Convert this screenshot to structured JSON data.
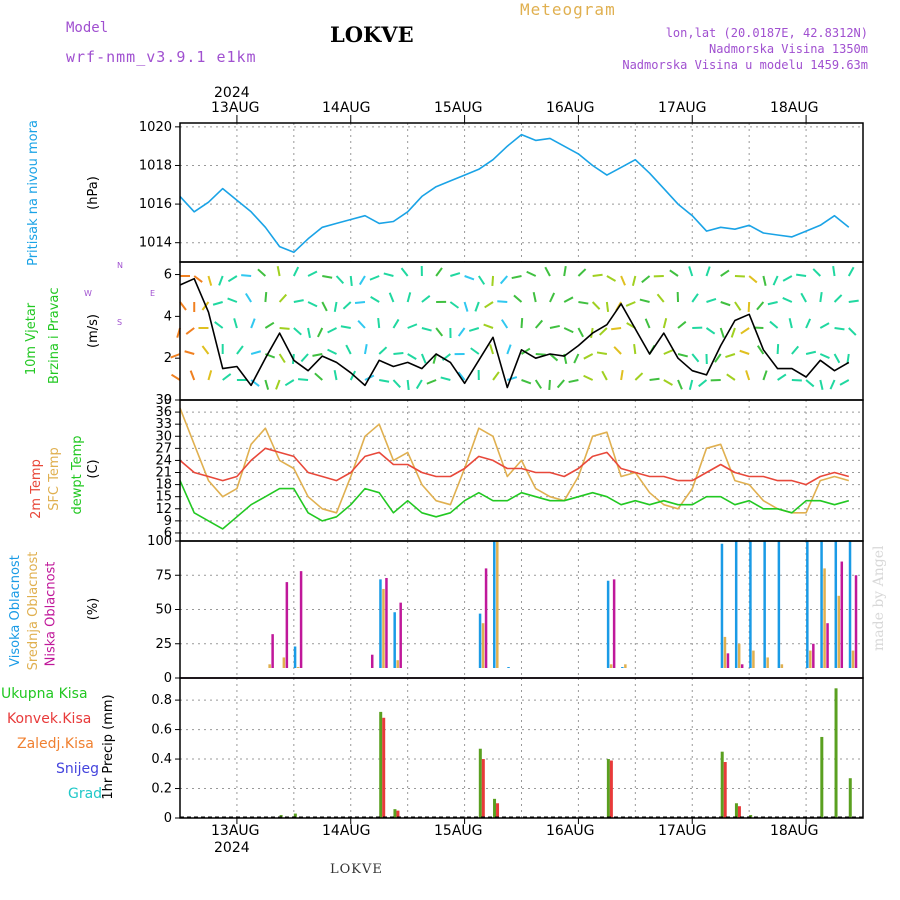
{
  "header": {
    "model_label": "Model",
    "model_name": "wrf-nmm_v3.9.1 e1km",
    "station": "LOKVE",
    "meteogram": "Meteogram",
    "coords": "lon,lat (20.0187E, 42.8312N)",
    "elev": "Nadmorska Visina 1350m",
    "elev_model": "Nadmorska Visina u modelu 1459.63m",
    "year": "2024",
    "footer_station": "LOKVE",
    "watermark": "made by Angel"
  },
  "colors": {
    "pressure": "#1aa3e6",
    "wind_speed": "#000000",
    "temp2m": "#e8483a",
    "sfc_temp": "#e0b050",
    "dewpt": "#22c822",
    "cloud_high": "#1a9be6",
    "cloud_mid": "#e0b050",
    "cloud_low": "#c0189a",
    "precip_total": "#5aa020",
    "precip_conv": "#e83a3a",
    "frozen": "#f08030",
    "snow": "#4444dd",
    "hail": "#20c8c8"
  },
  "x_axis": {
    "days": [
      "13AUG",
      "14AUG",
      "15AUG",
      "16AUG",
      "17AUG",
      "18AUG"
    ]
  },
  "panels": {
    "pressure": {
      "label_a": "Pritisak na nivou mora",
      "unit": "(hPa)",
      "yticks": [
        "1014",
        "1016",
        "1018",
        "1020"
      ]
    },
    "wind": {
      "label_a": "10m Vjetar",
      "label_b": "Brzina i Pravac",
      "unit": "(m/s)",
      "yticks": [
        "0",
        "2",
        "4",
        "6"
      ],
      "compass_n": "N",
      "compass_s": "S",
      "compass_w": "W",
      "compass_e": "E"
    },
    "temp": {
      "label_a": "2m Temp",
      "label_b": "SFC Temp",
      "label_c": "dewpt Temp",
      "unit": "(C)",
      "yticks": [
        "6",
        "9",
        "12",
        "15",
        "18",
        "21",
        "24",
        "27",
        "30",
        "33",
        "36",
        "39"
      ]
    },
    "cloud": {
      "label_a": "Visoka Oblacnost",
      "label_b": "Srednja Oblacnost",
      "label_c": "Niska Oblacnost",
      "unit": "(%)",
      "yticks": [
        "0",
        "25",
        "50",
        "75",
        "100"
      ]
    },
    "precip": {
      "leg_total": "Ukupna Kisa",
      "leg_conv": "Konvek.Kisa",
      "leg_frozen": "Zaledj.Kisa",
      "leg_snow": "Snijeg",
      "leg_hail": "Grad",
      "unit": "1hr Precip (mm)",
      "yticks": [
        "0",
        "0.2",
        "0.4",
        "0.6",
        "0.8"
      ]
    }
  },
  "chart_data": [
    {
      "type": "line",
      "ylabel": "Pritisak na nivou mora (hPa)",
      "ylim": [
        1013,
        1020.2
      ],
      "x_hours": [
        0,
        3,
        6,
        9,
        12,
        15,
        18,
        21,
        24,
        27,
        30,
        33,
        36,
        39,
        42,
        45,
        48,
        51,
        54,
        57,
        60,
        63,
        66,
        69,
        72,
        75,
        78,
        81,
        84,
        87,
        90,
        93,
        96,
        99,
        102,
        105,
        108,
        111,
        114,
        117,
        120,
        123,
        126,
        129,
        132,
        135,
        138,
        141
      ],
      "series": [
        {
          "values": [
            1016.4,
            1015.6,
            1016.1,
            1016.8,
            1016.2,
            1015.6,
            1014.8,
            1013.8,
            1013.5,
            1014.2,
            1014.8,
            1015.0,
            1015.2,
            1015.4,
            1015.0,
            1015.1,
            1015.6,
            1016.4,
            1016.9,
            1017.2,
            1017.5,
            1017.8,
            1018.3,
            1019.0,
            1019.6,
            1019.3,
            1019.4,
            1019.0,
            1018.6,
            1018.0,
            1017.5,
            1017.9,
            1018.3,
            1017.6,
            1016.8,
            1016.0,
            1015.4,
            1014.6,
            1014.8,
            1014.7,
            1014.9,
            1014.5,
            1014.4,
            1014.3,
            1014.6,
            1014.9,
            1015.4,
            1014.8
          ]
        }
      ]
    },
    {
      "type": "line",
      "ylabel": "10m Vjetar Brzina i Pravac (m/s)",
      "ylim": [
        0,
        6.6
      ],
      "x_hours": [
        0,
        3,
        6,
        9,
        12,
        15,
        18,
        21,
        24,
        27,
        30,
        33,
        36,
        39,
        42,
        45,
        48,
        51,
        54,
        57,
        60,
        63,
        66,
        69,
        72,
        75,
        78,
        81,
        84,
        87,
        90,
        93,
        96,
        99,
        102,
        105,
        108,
        111,
        114,
        117,
        120,
        123,
        126,
        129,
        132,
        135,
        138,
        141
      ],
      "series": [
        {
          "values": [
            5.5,
            5.8,
            4.2,
            1.5,
            1.6,
            0.7,
            2.0,
            3.2,
            1.9,
            1.4,
            2.1,
            1.8,
            1.3,
            0.7,
            1.9,
            1.6,
            1.8,
            1.5,
            2.2,
            1.8,
            0.8,
            1.9,
            3.0,
            0.6,
            2.4,
            2.0,
            2.2,
            2.1,
            2.6,
            3.2,
            3.6,
            4.6,
            3.4,
            2.2,
            3.2,
            2.0,
            1.4,
            1.2,
            2.6,
            3.8,
            4.1,
            2.4,
            1.5,
            1.5,
            1.1,
            1.9,
            1.4,
            1.8
          ]
        }
      ]
    },
    {
      "type": "line",
      "ylabel": "(C)",
      "ylim": [
        4,
        39
      ],
      "x_hours": [
        0,
        3,
        6,
        9,
        12,
        15,
        18,
        21,
        24,
        27,
        30,
        33,
        36,
        39,
        42,
        45,
        48,
        51,
        54,
        57,
        60,
        63,
        66,
        69,
        72,
        75,
        78,
        81,
        84,
        87,
        90,
        93,
        96,
        99,
        102,
        105,
        108,
        111,
        114,
        117,
        120,
        123,
        126,
        129,
        132,
        135,
        138,
        141
      ],
      "series": [
        {
          "name": "2m Temp",
          "values": [
            24,
            21,
            20,
            19,
            20,
            24,
            27,
            26,
            25,
            21,
            20,
            19,
            21,
            25,
            26,
            23,
            23,
            21,
            20,
            20,
            22,
            25,
            24,
            22,
            22,
            21,
            21,
            20,
            22,
            25,
            26,
            22,
            21,
            20,
            20,
            19,
            19,
            21,
            23,
            21,
            20,
            20,
            19,
            19,
            18,
            20,
            21,
            20
          ]
        },
        {
          "name": "SFC Temp",
          "values": [
            37,
            28,
            19,
            15,
            17,
            28,
            32,
            24,
            22,
            15,
            12,
            11,
            20,
            30,
            33,
            24,
            26,
            18,
            14,
            13,
            22,
            32,
            30,
            20,
            24,
            17,
            15,
            14,
            20,
            30,
            31,
            20,
            21,
            16,
            13,
            12,
            17,
            27,
            28,
            19,
            18,
            14,
            12,
            11,
            11,
            19,
            20,
            19
          ]
        },
        {
          "name": "dewpt Temp",
          "values": [
            19,
            11,
            9,
            7,
            10,
            13,
            15,
            17,
            17,
            11,
            9,
            10,
            13,
            17,
            16,
            11,
            14,
            11,
            10,
            11,
            14,
            16,
            14,
            14,
            16,
            15,
            14,
            14,
            15,
            16,
            15,
            13,
            14,
            13,
            14,
            13,
            13,
            15,
            15,
            13,
            14,
            12,
            12,
            11,
            14,
            14,
            13,
            14
          ]
        }
      ]
    },
    {
      "type": "bar",
      "ylabel": "(%)",
      "ylim": [
        0,
        100
      ],
      "x_hours": [
        0,
        3,
        6,
        9,
        12,
        15,
        18,
        21,
        24,
        27,
        30,
        33,
        36,
        39,
        42,
        45,
        48,
        51,
        54,
        57,
        60,
        63,
        66,
        69,
        72,
        75,
        78,
        81,
        84,
        87,
        90,
        93,
        96,
        99,
        102,
        105,
        108,
        111,
        114,
        117,
        120,
        123,
        126,
        129,
        132,
        135,
        138,
        141
      ],
      "series": [
        {
          "name": "Visoka Oblacnost",
          "values": [
            0,
            0,
            0,
            0,
            0,
            0,
            0,
            0,
            23,
            0,
            0,
            0,
            0,
            0,
            72,
            48,
            0,
            0,
            0,
            0,
            0,
            47,
            100,
            8,
            0,
            0,
            0,
            0,
            0,
            0,
            71,
            8,
            0,
            0,
            0,
            0,
            0,
            0,
            98,
            100,
            100,
            100,
            100,
            0,
            100,
            100,
            100,
            100
          ]
        },
        {
          "name": "Srednja Oblacnost",
          "values": [
            0,
            0,
            0,
            0,
            0,
            0,
            10,
            15,
            8,
            0,
            0,
            0,
            0,
            5,
            65,
            13,
            5,
            0,
            0,
            0,
            0,
            40,
            100,
            0,
            0,
            0,
            0,
            0,
            0,
            0,
            10,
            10,
            0,
            0,
            0,
            0,
            0,
            0,
            30,
            25,
            20,
            15,
            10,
            0,
            20,
            80,
            60,
            20
          ]
        },
        {
          "name": "Niska Oblacnost",
          "values": [
            0,
            0,
            0,
            0,
            0,
            0,
            32,
            70,
            78,
            0,
            0,
            0,
            0,
            17,
            73,
            55,
            0,
            0,
            0,
            0,
            0,
            80,
            5,
            0,
            0,
            0,
            4,
            0,
            0,
            0,
            72,
            0,
            0,
            0,
            0,
            0,
            0,
            0,
            18,
            10,
            5,
            4,
            3,
            0,
            25,
            40,
            85,
            75
          ]
        }
      ]
    },
    {
      "type": "bar",
      "ylabel": "1hr Precip (mm)",
      "ylim": [
        0,
        0.95
      ],
      "x_hours": [
        0,
        3,
        6,
        9,
        12,
        15,
        18,
        21,
        24,
        27,
        30,
        33,
        36,
        39,
        42,
        45,
        48,
        51,
        54,
        57,
        60,
        63,
        66,
        69,
        72,
        75,
        78,
        81,
        84,
        87,
        90,
        93,
        96,
        99,
        102,
        105,
        108,
        111,
        114,
        117,
        120,
        123,
        126,
        129,
        132,
        135,
        138,
        141
      ],
      "series": [
        {
          "name": "Ukupna Kisa",
          "values": [
            0,
            0,
            0,
            0,
            0,
            0,
            0,
            0.02,
            0.03,
            0,
            0,
            0,
            0,
            0,
            0.72,
            0.06,
            0,
            0,
            0,
            0,
            0,
            0.47,
            0.13,
            0,
            0,
            0,
            0,
            0,
            0,
            0,
            0.4,
            0,
            0,
            0,
            0,
            0,
            0,
            0,
            0.45,
            0.1,
            0.02,
            0,
            0,
            0,
            0,
            0.55,
            0.88,
            0.27
          ]
        },
        {
          "name": "Konvek.Kisa",
          "values": [
            0,
            0,
            0,
            0,
            0,
            0,
            0,
            0,
            0,
            0,
            0,
            0,
            0,
            0,
            0.68,
            0.05,
            0,
            0,
            0,
            0,
            0,
            0.4,
            0.1,
            0,
            0,
            0,
            0,
            0,
            0,
            0,
            0.39,
            0,
            0,
            0,
            0,
            0,
            0,
            0,
            0.38,
            0.08,
            0,
            0,
            0,
            0,
            0,
            0,
            0,
            0
          ]
        }
      ]
    }
  ]
}
